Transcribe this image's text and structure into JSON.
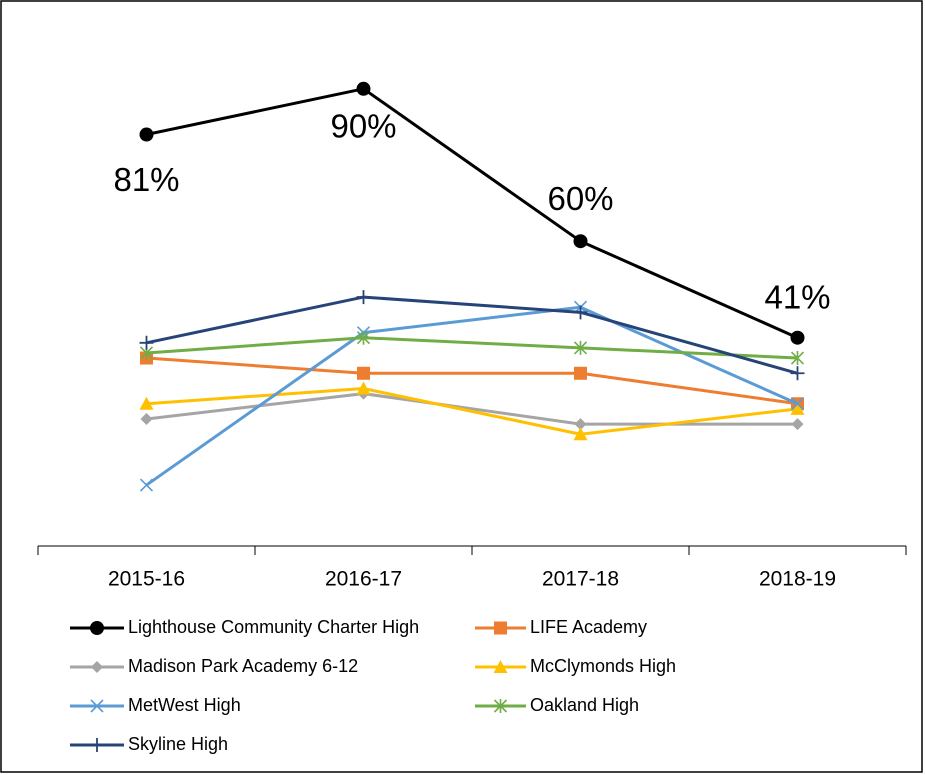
{
  "chart_data": {
    "type": "line",
    "categories": [
      "2015-16",
      "2016-17",
      "2017-18",
      "2018-19"
    ],
    "ylim": [
      0,
      100
    ],
    "legend": "bottom",
    "series": [
      {
        "name": "Lighthouse Community Charter High",
        "color": "#000000",
        "marker": "circle",
        "values": [
          81,
          90,
          60,
          41
        ],
        "value_labels": [
          "81%",
          "90%",
          "60%",
          "41%"
        ]
      },
      {
        "name": "LIFE Academy",
        "color": "#ed7d31",
        "marker": "square",
        "values": [
          37,
          34,
          34,
          28
        ]
      },
      {
        "name": "Madison Park Academy 6-12",
        "color": "#a5a5a5",
        "marker": "diamond",
        "values": [
          25,
          30,
          24,
          24
        ]
      },
      {
        "name": "McClymonds High",
        "color": "#ffc000",
        "marker": "triangle",
        "values": [
          28,
          31,
          22,
          27
        ]
      },
      {
        "name": "MetWest High",
        "color": "#5b9bd5",
        "marker": "x",
        "values": [
          12,
          42,
          47,
          28
        ]
      },
      {
        "name": "Oakland High",
        "color": "#70ad47",
        "marker": "asterisk",
        "values": [
          38,
          41,
          39,
          37
        ]
      },
      {
        "name": "Skyline High",
        "color": "#264478",
        "marker": "plus",
        "values": [
          40,
          49,
          46,
          34
        ]
      }
    ]
  }
}
